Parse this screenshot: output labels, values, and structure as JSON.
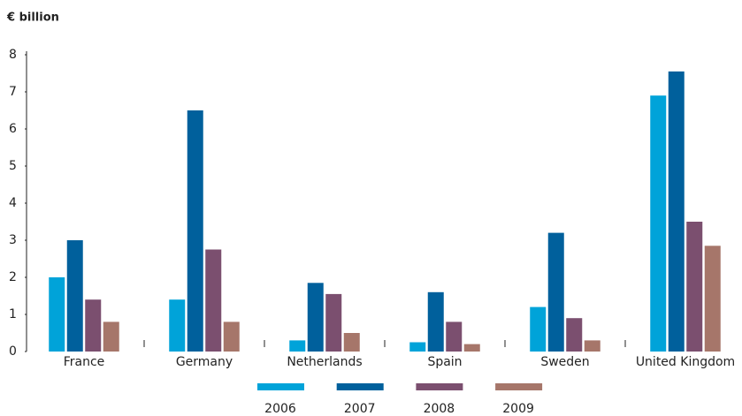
{
  "chart_data": {
    "type": "bar",
    "y_label": "€ billion",
    "categories": [
      "France",
      "Germany",
      "Netherlands",
      "Spain",
      "Sweden",
      "United Kingdom"
    ],
    "series": [
      {
        "name": "2006",
        "color": "#00a3d9",
        "values": [
          2.0,
          1.4,
          0.3,
          0.25,
          1.2,
          6.9
        ]
      },
      {
        "name": "2007",
        "color": "#00609c",
        "values": [
          3.0,
          6.5,
          1.85,
          1.6,
          3.2,
          7.55
        ]
      },
      {
        "name": "2008",
        "color": "#7b4f6f",
        "values": [
          1.4,
          2.75,
          1.55,
          0.8,
          0.9,
          3.5
        ]
      },
      {
        "name": "2009",
        "color": "#a6766a",
        "values": [
          0.8,
          0.8,
          0.5,
          0.2,
          0.3,
          2.85
        ]
      }
    ],
    "ylim": [
      0,
      8
    ],
    "yticks": [
      0,
      1,
      2,
      3,
      4,
      5,
      6,
      7,
      8
    ],
    "legend": "bottom"
  }
}
